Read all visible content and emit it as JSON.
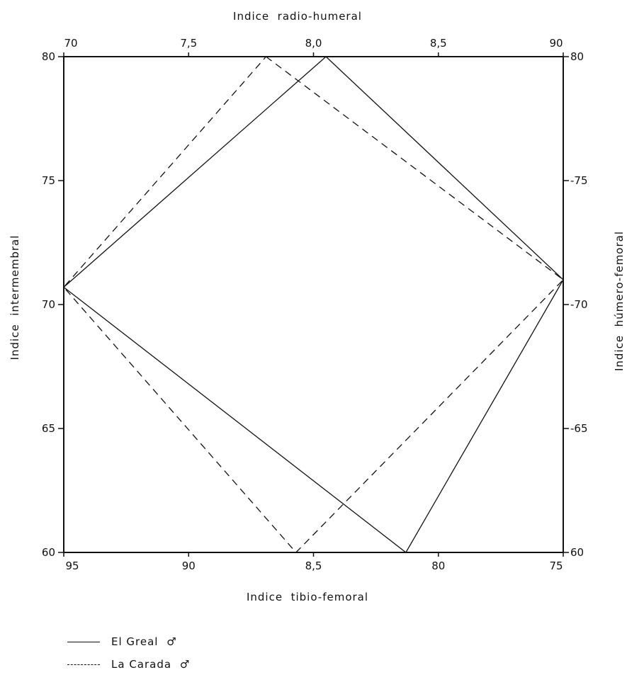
{
  "chart_data": {
    "type": "line",
    "subtype": "quadrant-radar (four-axis index diagram)",
    "axes": {
      "top": {
        "title": "Indice  radio-humeral",
        "ticks": [
          "70",
          "7,5",
          "8,0",
          "8,5",
          "90"
        ],
        "range": [
          70,
          90
        ],
        "direction": "left-to-right"
      },
      "bottom": {
        "title": "Indice  tibio-femoral",
        "ticks": [
          "95",
          "90",
          "8,5",
          "80",
          "75"
        ],
        "range": [
          95,
          75
        ],
        "direction": "left-to-right"
      },
      "left": {
        "title": "Indice  intermembral",
        "ticks": [
          "80",
          "75",
          "70",
          "65",
          "60"
        ],
        "range": [
          60,
          80
        ],
        "direction": "bottom-to-top"
      },
      "right": {
        "title": "Indice  húmero-femoral",
        "ticks": [
          "80",
          "-75",
          "-70",
          "-65",
          "60"
        ],
        "range": [
          60,
          80
        ],
        "direction": "bottom-to-top"
      }
    },
    "grid": false,
    "legend_position": "bottom-left",
    "series": [
      {
        "name": "El Greal",
        "sex_symbol": "♂",
        "style": "solid",
        "values": {
          "radio_humeral": 80.5,
          "intermembral": 70.7,
          "humero_femoral": 71.0,
          "tibio_femoral": 81.3
        }
      },
      {
        "name": "La Carada",
        "sex_symbol": "♂",
        "style": "dashed",
        "values": {
          "radio_humeral": 78.1,
          "intermembral": 70.7,
          "humero_femoral": 71.0,
          "tibio_femoral": 85.7
        }
      }
    ]
  },
  "legend": {
    "entries": [
      {
        "label": "El Greal ",
        "symbol": "♂",
        "style": "solid"
      },
      {
        "label": "La Carada ",
        "symbol": "♂",
        "style": "dashed"
      }
    ]
  }
}
